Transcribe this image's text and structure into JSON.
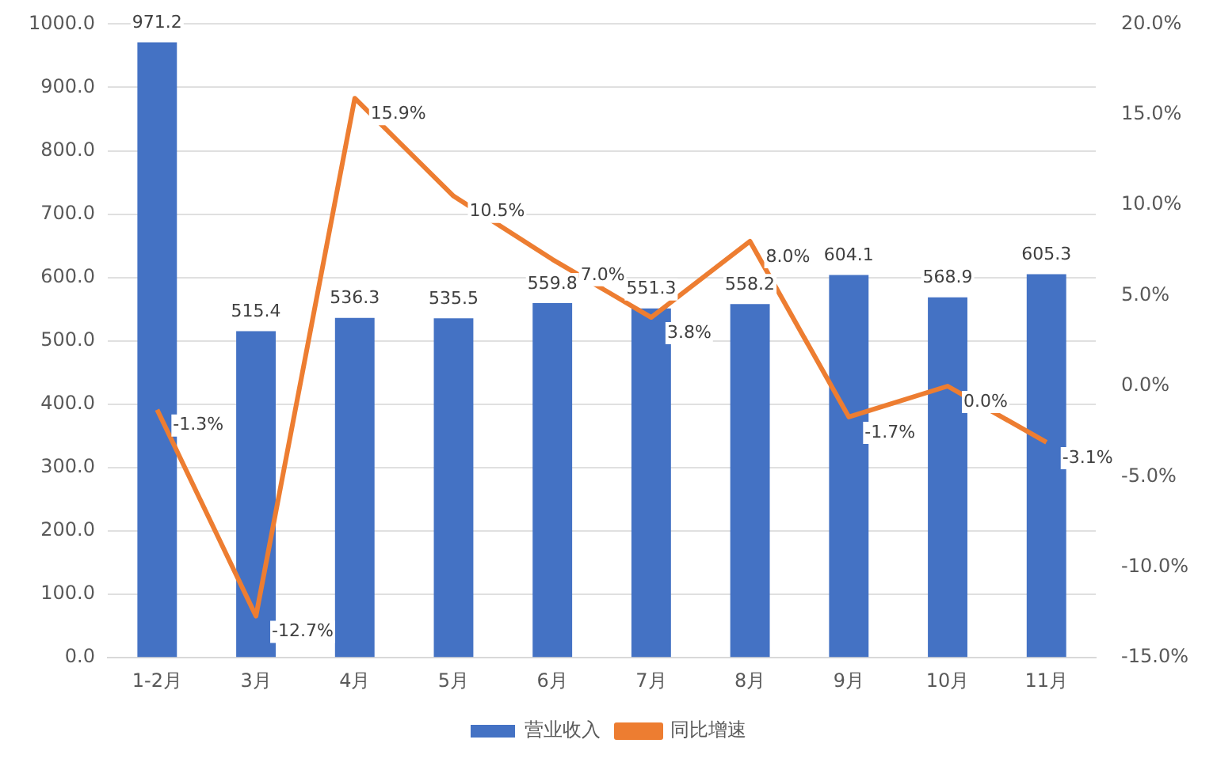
{
  "chart_data": {
    "type": "bar",
    "categories": [
      "1-2月",
      "3月",
      "4月",
      "5月",
      "6月",
      "7月",
      "8月",
      "9月",
      "10月",
      "11月"
    ],
    "series": [
      {
        "name": "营业收入",
        "color": "#4472c4",
        "values": [
          971.2,
          515.4,
          536.3,
          535.5,
          559.8,
          551.3,
          558.2,
          604.1,
          568.9,
          605.3
        ],
        "value_labels": [
          "971.2",
          "515.4",
          "536.3",
          "535.5",
          "559.8",
          "551.3",
          "558.2",
          "604.1",
          "568.9",
          "605.3"
        ]
      },
      {
        "name": "同比增速",
        "type": "line",
        "axis": "y2",
        "color": "#ed7d31",
        "values": [
          -1.3,
          -12.7,
          15.9,
          10.5,
          7.0,
          3.8,
          8.0,
          -1.7,
          0.0,
          -3.1
        ],
        "value_labels": [
          "-1.3%",
          "-12.7%",
          "15.9%",
          "10.5%",
          "7.0%",
          "3.8%",
          "8.0%",
          "-1.7%",
          "0.0%",
          "-3.1%"
        ]
      }
    ],
    "ylim": [
      0,
      1000
    ],
    "yticks": [
      {
        "value": 0,
        "label": "0.0"
      },
      {
        "value": 100,
        "label": "100.0"
      },
      {
        "value": 200,
        "label": "200.0"
      },
      {
        "value": 300,
        "label": "300.0"
      },
      {
        "value": 400,
        "label": "400.0"
      },
      {
        "value": 500,
        "label": "500.0"
      },
      {
        "value": 600,
        "label": "600.0"
      },
      {
        "value": 700,
        "label": "700.0"
      },
      {
        "value": 800,
        "label": "800.0"
      },
      {
        "value": 900,
        "label": "900.0"
      },
      {
        "value": 1000,
        "label": "1000.0"
      }
    ],
    "y2lim": [
      -15,
      20
    ],
    "y2ticks": [
      {
        "value": -15,
        "label": "-15.0%"
      },
      {
        "value": -10,
        "label": "-10.0%"
      },
      {
        "value": -5,
        "label": "-5.0%"
      },
      {
        "value": 0,
        "label": "0.0%"
      },
      {
        "value": 5,
        "label": "5.0%"
      },
      {
        "value": 10,
        "label": "10.0%"
      },
      {
        "value": 15,
        "label": "15.0%"
      },
      {
        "value": 20,
        "label": "20.0%"
      }
    ],
    "grid": "y",
    "legend": "bottom",
    "marker": "none",
    "line_style": "solid"
  }
}
